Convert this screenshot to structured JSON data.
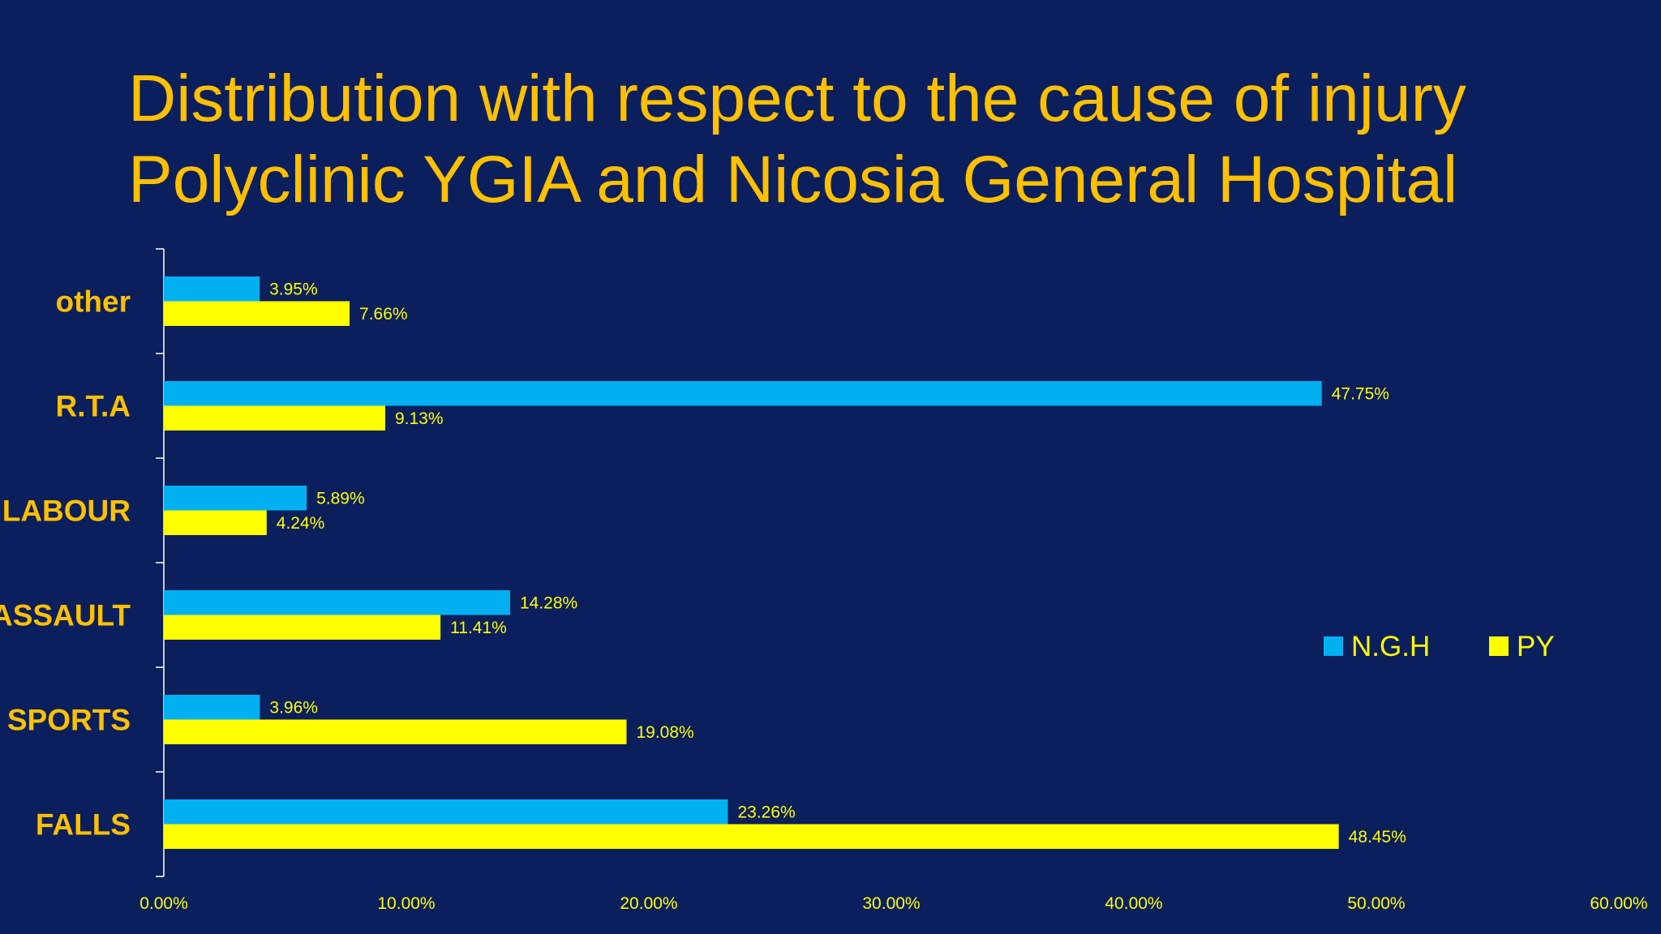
{
  "slide": {
    "title_line1": "Distribution with respect to the cause of injury",
    "title_line2": "Polyclinic YGIA and Nicosia General Hospital"
  },
  "colors": {
    "background": "#0b1f5c",
    "title": "#ffc000",
    "category_label": "#ffc000",
    "tick_label": "#ffff00",
    "data_label": "#ffff00",
    "axis": "#ffffff"
  },
  "chart_data": {
    "type": "bar",
    "orientation": "horizontal",
    "title": "Distribution with respect to the cause of injury Polyclinic YGIA and Nicosia General Hospital",
    "categories": [
      "other",
      "R.T.A",
      "LABOUR",
      "ASSAULT",
      "SPORTS",
      "FALLS"
    ],
    "series": [
      {
        "name": "N.G.H",
        "color": "#00b0f0",
        "values": [
          3.95,
          47.75,
          5.89,
          14.28,
          3.96,
          23.26
        ],
        "labels": [
          "3.95%",
          "47.75%",
          "5.89%",
          "14.28%",
          "3.96%",
          "23.26%"
        ]
      },
      {
        "name": "PY",
        "color": "#ffff00",
        "values": [
          7.66,
          9.13,
          4.24,
          11.41,
          19.08,
          48.45
        ],
        "labels": [
          "7.66%",
          "9.13%",
          "4.24%",
          "11.41%",
          "19.08%",
          "48.45%"
        ]
      }
    ],
    "xlim": [
      0,
      60
    ],
    "xticks": [
      0,
      10,
      20,
      30,
      40,
      50,
      60
    ],
    "xtick_labels": [
      "0.00%",
      "10.00%",
      "20.00%",
      "30.00%",
      "40.00%",
      "50.00%",
      "60.00%"
    ],
    "xlabel": "",
    "ylabel": "",
    "grid": false,
    "legend_position": "right"
  }
}
